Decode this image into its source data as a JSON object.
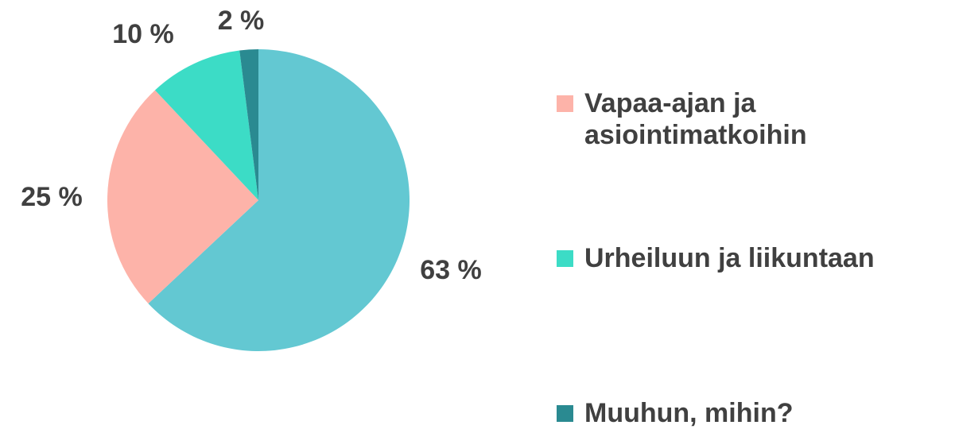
{
  "chart_data": {
    "type": "pie",
    "categories": [
      null,
      "Vapaa-ajan ja asiointimatkoihin",
      "Urheiluun ja liikuntaan",
      "Muuhun, mihin?"
    ],
    "values": [
      63,
      25,
      10,
      2
    ],
    "value_labels": [
      "63 %",
      "25 %",
      "10 %",
      "2 %"
    ],
    "colors": [
      "#63c8d2",
      "#fdb3a9",
      "#3cdcc6",
      "#2a8a91"
    ]
  }
}
